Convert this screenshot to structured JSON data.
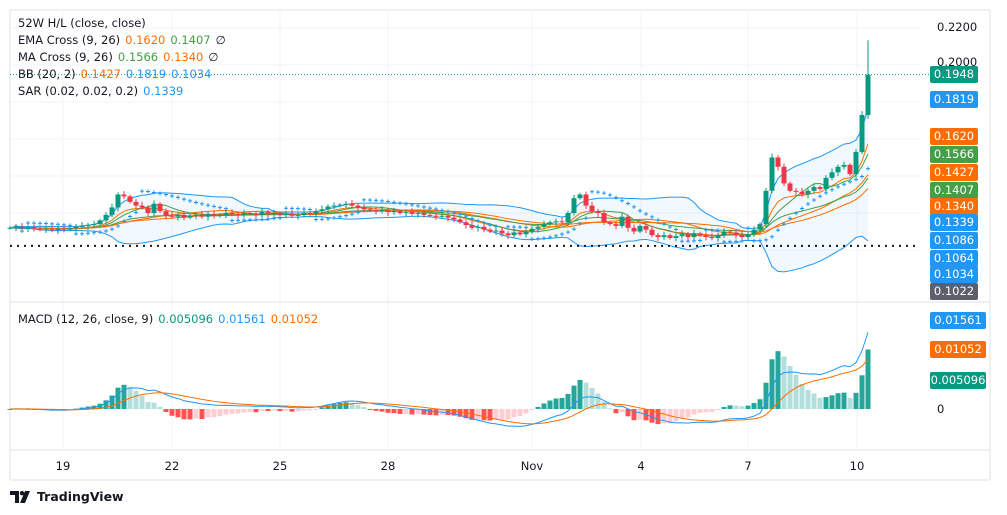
{
  "legend": {
    "hl": {
      "label": "52W H/L (close, close)"
    },
    "ema": {
      "label": "EMA Cross (9, 26)",
      "v1": "0.1620",
      "v2": "0.1407",
      "icon": "hidden-icon"
    },
    "ma": {
      "label": "MA Cross (9, 26)",
      "v1": "0.1566",
      "v2": "0.1340",
      "icon": "hidden-icon"
    },
    "bb": {
      "label": "BB (20, 2)",
      "v1": "0.1427",
      "v2": "0.1819",
      "v3": "0.1034"
    },
    "sar": {
      "label": "SAR (0.02, 0.02, 0.2)",
      "v1": "0.1339"
    },
    "macd": {
      "label": "MACD (12, 26, close, 9)",
      "v1": "0.005096",
      "v2": "0.01561",
      "v3": "0.01052"
    }
  },
  "price_axis": {
    "ticks": [
      "0.2200",
      "0.2000"
    ]
  },
  "badges": [
    {
      "text": "0.1948",
      "color": "#089981"
    },
    {
      "text": "0.1819",
      "color": "#2196f3"
    },
    {
      "text": "0.1620",
      "color": "#ff6d00"
    },
    {
      "text": "0.1566",
      "color": "#43a047"
    },
    {
      "text": "0.1427",
      "color": "#ff6d00"
    },
    {
      "text": "0.1407",
      "color": "#43a047"
    },
    {
      "text": "0.1340",
      "color": "#ff6d00"
    },
    {
      "text": "0.1339",
      "color": "#2196f3"
    },
    {
      "text": "0.1086",
      "color": "#2196f3"
    },
    {
      "text": "0.1064",
      "color": "#2196f3"
    },
    {
      "text": "0.1034",
      "color": "#2196f3"
    },
    {
      "text": "0.1022",
      "color": "#5d606b"
    }
  ],
  "macd_badges": [
    {
      "text": "0.01561",
      "color": "#2196f3"
    },
    {
      "text": "0.01052",
      "color": "#ff6d00"
    },
    {
      "text": "0.005096",
      "color": "#089981"
    }
  ],
  "macd_axis": {
    "zero": "0"
  },
  "time_axis": [
    "19",
    "22",
    "25",
    "28",
    "Nov",
    "4",
    "7",
    "10"
  ],
  "footer": {
    "brand": "TradingView"
  },
  "colors": {
    "up": "#089981",
    "down": "#f23645",
    "bb": "#2196f3",
    "ema_fast": "#ff6d00",
    "ema_slow": "#43a047",
    "ma_fast": "#43a047",
    "ma_slow": "#ff6d00",
    "sar": "#2196f3",
    "macd": "#2196f3",
    "signal": "#ff6d00"
  },
  "chart_data": {
    "type": "candlestick",
    "interval": "4h",
    "price_range": [
      0.095,
      0.225
    ],
    "low_52w": 0.1022,
    "last_close": 0.1948,
    "last_high": 0.2134,
    "closes": [
      0.112,
      0.1125,
      0.1118,
      0.1122,
      0.1115,
      0.111,
      0.1112,
      0.1108,
      0.1115,
      0.111,
      0.1118,
      0.1125,
      0.113,
      0.1135,
      0.114,
      0.116,
      0.119,
      0.123,
      0.13,
      0.129,
      0.126,
      0.124,
      0.123,
      0.12,
      0.125,
      0.121,
      0.1185,
      0.118,
      0.119,
      0.1175,
      0.1185,
      0.119,
      0.118,
      0.1195,
      0.1185,
      0.119,
      0.12,
      0.1195,
      0.119,
      0.12,
      0.1195,
      0.119,
      0.1205,
      0.1195,
      0.12,
      0.119,
      0.1195,
      0.1185,
      0.119,
      0.12,
      0.1195,
      0.121,
      0.122,
      0.1235,
      0.124,
      0.1245,
      0.125,
      0.124,
      0.123,
      0.122,
      0.1215,
      0.121,
      0.1215,
      0.1205,
      0.121,
      0.12,
      0.1205,
      0.1195,
      0.12,
      0.119,
      0.1185,
      0.118,
      0.1185,
      0.1175,
      0.1165,
      0.115,
      0.1135,
      0.112,
      0.1125,
      0.111,
      0.11,
      0.1105,
      0.109,
      0.108,
      0.1095,
      0.1085,
      0.11,
      0.1115,
      0.1125,
      0.114,
      0.115,
      0.1155,
      0.115,
      0.12,
      0.128,
      0.13,
      0.124,
      0.121,
      0.12,
      0.115,
      0.114,
      0.113,
      0.118,
      0.112,
      0.11,
      0.113,
      0.111,
      0.108,
      0.107,
      0.108,
      0.1065,
      0.1075,
      0.1085,
      0.107,
      0.109,
      0.108,
      0.107,
      0.1065,
      0.108,
      0.11,
      0.1095,
      0.108,
      0.107,
      0.1085,
      0.111,
      0.114,
      0.132,
      0.15,
      0.145,
      0.136,
      0.132,
      0.1315,
      0.13,
      0.132,
      0.134,
      0.133,
      0.139,
      0.142,
      0.145,
      0.146,
      0.141,
      0.153,
      0.173,
      0.1948
    ]
  }
}
